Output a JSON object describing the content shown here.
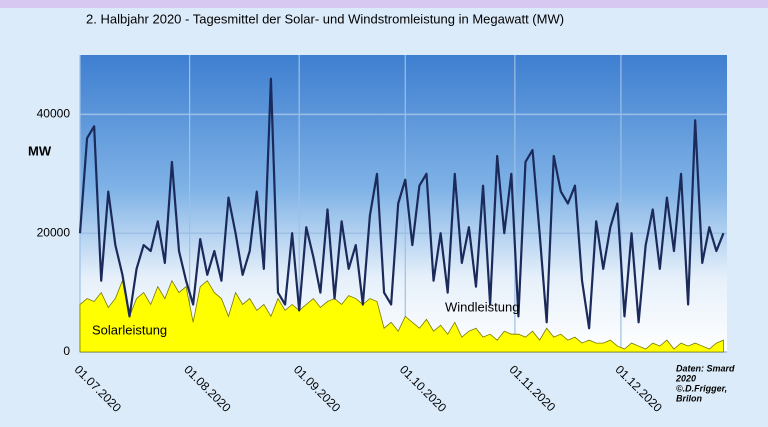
{
  "chart_data": {
    "type": "line",
    "title": "2. Halbjahr 2020 - Tagesmittel der Solar- und Windstromleistung in Megawatt (MW)",
    "y_label": "MW",
    "x": [
      "2020-07-01",
      "2020-07-03",
      "2020-07-05",
      "2020-07-07",
      "2020-07-09",
      "2020-07-11",
      "2020-07-13",
      "2020-07-15",
      "2020-07-17",
      "2020-07-19",
      "2020-07-21",
      "2020-07-23",
      "2020-07-25",
      "2020-07-27",
      "2020-07-29",
      "2020-07-31",
      "2020-08-02",
      "2020-08-04",
      "2020-08-06",
      "2020-08-08",
      "2020-08-10",
      "2020-08-12",
      "2020-08-14",
      "2020-08-16",
      "2020-08-18",
      "2020-08-20",
      "2020-08-22",
      "2020-08-24",
      "2020-08-26",
      "2020-08-28",
      "2020-08-30",
      "2020-09-01",
      "2020-09-03",
      "2020-09-05",
      "2020-09-07",
      "2020-09-09",
      "2020-09-11",
      "2020-09-13",
      "2020-09-15",
      "2020-09-17",
      "2020-09-19",
      "2020-09-21",
      "2020-09-23",
      "2020-09-25",
      "2020-09-27",
      "2020-09-29",
      "2020-10-01",
      "2020-10-03",
      "2020-10-05",
      "2020-10-07",
      "2020-10-09",
      "2020-10-11",
      "2020-10-13",
      "2020-10-15",
      "2020-10-17",
      "2020-10-19",
      "2020-10-21",
      "2020-10-23",
      "2020-10-25",
      "2020-10-27",
      "2020-10-29",
      "2020-10-31",
      "2020-11-02",
      "2020-11-04",
      "2020-11-06",
      "2020-11-08",
      "2020-11-10",
      "2020-11-12",
      "2020-11-14",
      "2020-11-16",
      "2020-11-18",
      "2020-11-20",
      "2020-11-22",
      "2020-11-24",
      "2020-11-26",
      "2020-11-28",
      "2020-11-30",
      "2020-12-02",
      "2020-12-04",
      "2020-12-06",
      "2020-12-08",
      "2020-12-10",
      "2020-12-12",
      "2020-12-14",
      "2020-12-16",
      "2020-12-18",
      "2020-12-20",
      "2020-12-22",
      "2020-12-24",
      "2020-12-26",
      "2020-12-28",
      "2020-12-30"
    ],
    "series": [
      {
        "name": "Windleistung",
        "type": "line",
        "color": "#1b2a5a",
        "values": [
          20000,
          36000,
          38000,
          12000,
          27000,
          18000,
          13000,
          6000,
          14000,
          18000,
          17000,
          22000,
          15000,
          32000,
          17000,
          12000,
          8000,
          19000,
          13000,
          17000,
          12000,
          26000,
          20000,
          13000,
          17000,
          27000,
          14000,
          46000,
          10000,
          8000,
          20000,
          7000,
          21000,
          16000,
          10000,
          24000,
          9000,
          22000,
          14000,
          18000,
          8000,
          23000,
          30000,
          10000,
          8000,
          25000,
          29000,
          18000,
          28000,
          30000,
          12000,
          20000,
          10000,
          30000,
          15000,
          21000,
          11000,
          28000,
          8000,
          33000,
          20000,
          30000,
          6000,
          32000,
          34000,
          20000,
          5000,
          33000,
          27000,
          25000,
          28000,
          12000,
          4000,
          22000,
          14000,
          21000,
          25000,
          6000,
          20000,
          5000,
          18000,
          24000,
          14000,
          26000,
          17000,
          30000,
          8000,
          39000,
          15000,
          21000,
          17000,
          20000
        ]
      },
      {
        "name": "Solarleistung",
        "type": "area",
        "color": "#ffff00",
        "values": [
          8000,
          9000,
          8500,
          10000,
          7500,
          9000,
          12000,
          6000,
          9000,
          10000,
          8000,
          11000,
          9000,
          12000,
          10000,
          11000,
          5000,
          11000,
          12000,
          10000,
          9000,
          6000,
          10000,
          8000,
          9000,
          7000,
          8000,
          6000,
          9000,
          7000,
          8000,
          7000,
          8000,
          9000,
          7500,
          8500,
          9000,
          8000,
          9500,
          9000,
          8000,
          9000,
          8500,
          4000,
          5000,
          3500,
          6000,
          5000,
          4000,
          5500,
          3500,
          4500,
          3000,
          5000,
          2500,
          3500,
          4000,
          2500,
          3000,
          2000,
          3500,
          3000,
          3000,
          2500,
          3500,
          2000,
          4000,
          2500,
          3000,
          2000,
          2500,
          1500,
          2000,
          1500,
          1500,
          2000,
          1000,
          500,
          1500,
          1000,
          500,
          1500,
          1000,
          2000,
          500,
          1500,
          1000,
          1500,
          1000,
          500,
          1500,
          2000
        ]
      }
    ],
    "xlim": [
      "2020-07-01",
      "2020-12-31"
    ],
    "xticks": [
      {
        "value": "2020-07-01",
        "label": "01.07.2020"
      },
      {
        "value": "2020-08-01",
        "label": "01.08.2020"
      },
      {
        "value": "2020-09-01",
        "label": "01.09.2020"
      },
      {
        "value": "2020-10-01",
        "label": "01.10.2020"
      },
      {
        "value": "2020-11-01",
        "label": "01.11.2020"
      },
      {
        "value": "2020-12-01",
        "label": "01.12.2020"
      }
    ],
    "ylim": [
      0,
      50000
    ],
    "yticks": [
      0,
      20000,
      40000
    ],
    "grid": true,
    "source": [
      "Daten: Smard",
      "2020",
      "©.D.Frigger,",
      "Brilon"
    ]
  }
}
